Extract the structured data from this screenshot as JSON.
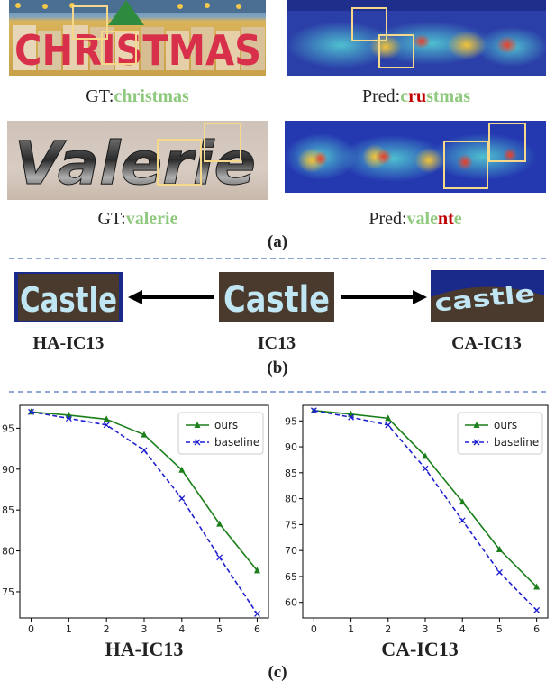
{
  "panel_a": {
    "label": "(a)",
    "row1": {
      "gt_prefix": "GT:",
      "gt_word": "christmas",
      "pred_prefix": "Pred:",
      "pred_parts": [
        {
          "t": "c",
          "c": "g"
        },
        {
          "t": "ru",
          "c": "r"
        },
        {
          "t": "stmas",
          "c": "g"
        }
      ]
    },
    "row2": {
      "gt_prefix": "GT:",
      "gt_word": "valerie",
      "pred_prefix": "Pred:",
      "pred_parts": [
        {
          "t": "vale",
          "c": "g"
        },
        {
          "t": "nt",
          "c": "r"
        },
        {
          "t": "e",
          "c": "g"
        }
      ]
    },
    "img1_text": "CHRISTMAS",
    "img3_text": "Valerie"
  },
  "panel_b": {
    "label": "(b)",
    "left_name": "HA-IC13",
    "center_name": "IC13",
    "right_name": "CA-IC13",
    "left_img_text": "Castle",
    "center_img_text": "Castle",
    "right_img_text": "castle"
  },
  "panel_c": {
    "label": "(c)",
    "legend": {
      "ours": "ours",
      "baseline": "baseline"
    },
    "colors": {
      "ours": "#1a7f1a",
      "baseline": "#1f1fd0"
    }
  },
  "chart_data": [
    {
      "type": "line",
      "xlabel": "HA-IC13",
      "x": [
        0,
        1,
        2,
        3,
        4,
        5,
        6
      ],
      "xticks": [
        "0",
        "1",
        "2",
        "3",
        "4",
        "5",
        "6"
      ],
      "yticks": [
        "75",
        "80",
        "85",
        "90",
        "95"
      ],
      "ylim": [
        71.8,
        97.8
      ],
      "legend_position": "top-right",
      "series": [
        {
          "name": "ours",
          "values": [
            97.0,
            96.6,
            96.1,
            94.2,
            89.9,
            83.3,
            77.6
          ]
        },
        {
          "name": "baseline",
          "values": [
            97.0,
            96.2,
            95.4,
            92.3,
            86.4,
            79.2,
            72.3
          ]
        }
      ]
    },
    {
      "type": "line",
      "xlabel": "CA-IC13",
      "x": [
        0,
        1,
        2,
        3,
        4,
        5,
        6
      ],
      "xticks": [
        "0",
        "1",
        "2",
        "3",
        "4",
        "5",
        "6"
      ],
      "yticks": [
        "60",
        "65",
        "70",
        "75",
        "80",
        "85",
        "90",
        "95"
      ],
      "ylim": [
        57,
        98
      ],
      "legend_position": "top-right",
      "series": [
        {
          "name": "ours",
          "values": [
            97.0,
            96.3,
            95.5,
            88.2,
            79.4,
            70.2,
            63.0
          ]
        },
        {
          "name": "baseline",
          "values": [
            97.0,
            95.7,
            94.2,
            85.8,
            75.8,
            65.8,
            58.5
          ]
        }
      ]
    }
  ]
}
